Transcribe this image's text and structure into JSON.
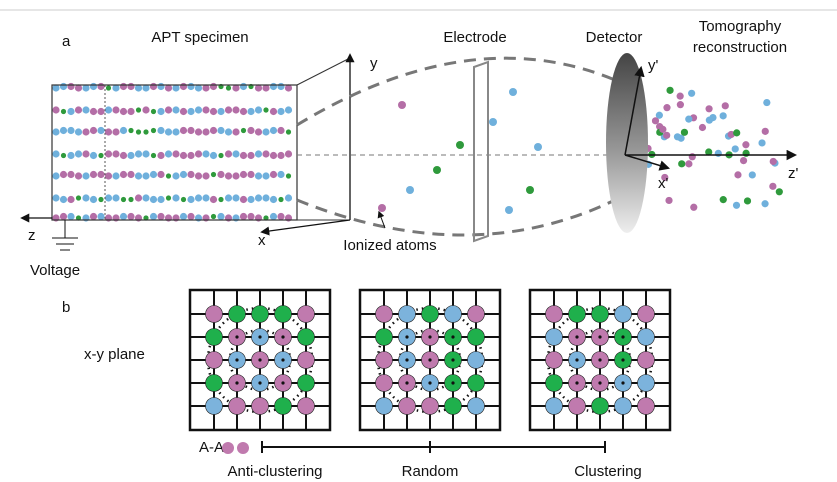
{
  "panel_a": {
    "label": "a",
    "specimen_title": "APT specimen",
    "electrode": "Electrode",
    "detector": "Detector",
    "reconstruction_lines": [
      "Tomography",
      "reconstruction"
    ],
    "axes": {
      "y": "y",
      "x": "x",
      "z": "z"
    },
    "voltage": "Voltage",
    "ionized_atoms": "Ionized atoms",
    "detector_axes": {
      "y": "y'",
      "x": "x'",
      "z": "z'"
    }
  },
  "panel_b": {
    "label": "b",
    "plane": "x-y plane",
    "pair": "A-A",
    "scale_labels": [
      "Anti-clustering",
      "Random",
      "Clustering"
    ]
  }
}
